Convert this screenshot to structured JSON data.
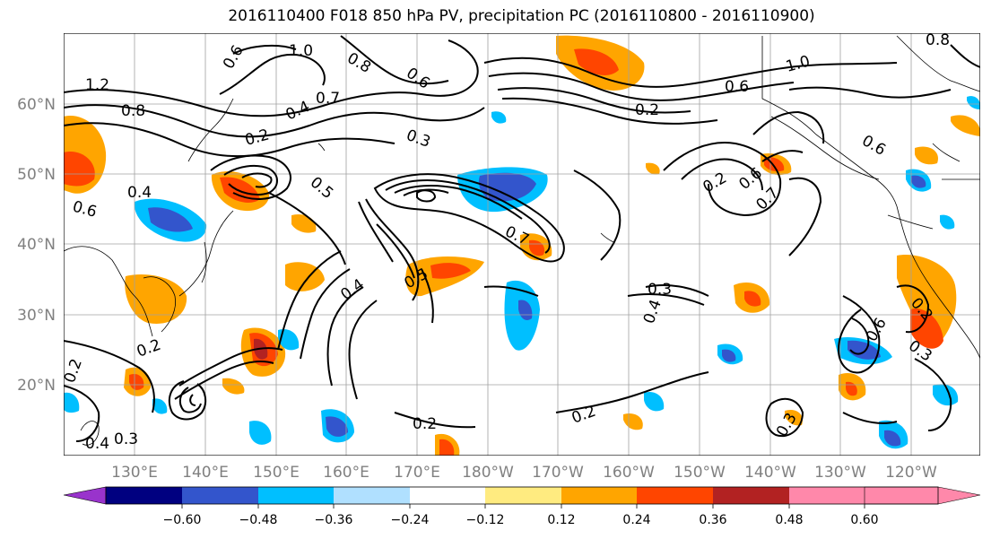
{
  "title": "2016110400 F018 850 hPa PV, precipitation PC (2016110800 - 2016110900)",
  "lat_labels": [
    "60°N",
    "50°N",
    "40°N",
    "30°N",
    "20°N"
  ],
  "lon_labels": [
    "130°E",
    "140°E",
    "150°E",
    "160°E",
    "170°E",
    "180°W",
    "170°W",
    "160°W",
    "150°W",
    "140°W",
    "130°W",
    "120°W"
  ],
  "colorbar": {
    "colors": [
      "#9933cc",
      "#000080",
      "#3355cc",
      "#00bfff",
      "#b0e0ff",
      "#ffffff",
      "#ffeb80",
      "#ffa500",
      "#ff4500",
      "#b22222",
      "#ff88aa"
    ],
    "tick_labels": [
      "−0.60",
      "−0.48",
      "−0.36",
      "−0.24",
      "−0.12",
      "0.12",
      "0.24",
      "0.36",
      "0.48",
      "0.60"
    ]
  },
  "contour_labels": [
    "1.0",
    "0.8",
    "0.6",
    "1.2",
    "0.8",
    "0.4",
    "0.2",
    "0.7",
    "0.3",
    "0.6",
    "0.5",
    "0.4",
    "0.6",
    "0.7",
    "1.0",
    "0.6",
    "0.2",
    "0.2",
    "0.7",
    "0.6",
    "0.6",
    "0.4",
    "0.5",
    "0.3",
    "0.4",
    "0.2",
    "0.2",
    "0.6",
    "0.3",
    "0.2",
    "0.3",
    "0.4",
    "0.2",
    "0.3",
    "0.2",
    "0.8"
  ]
}
